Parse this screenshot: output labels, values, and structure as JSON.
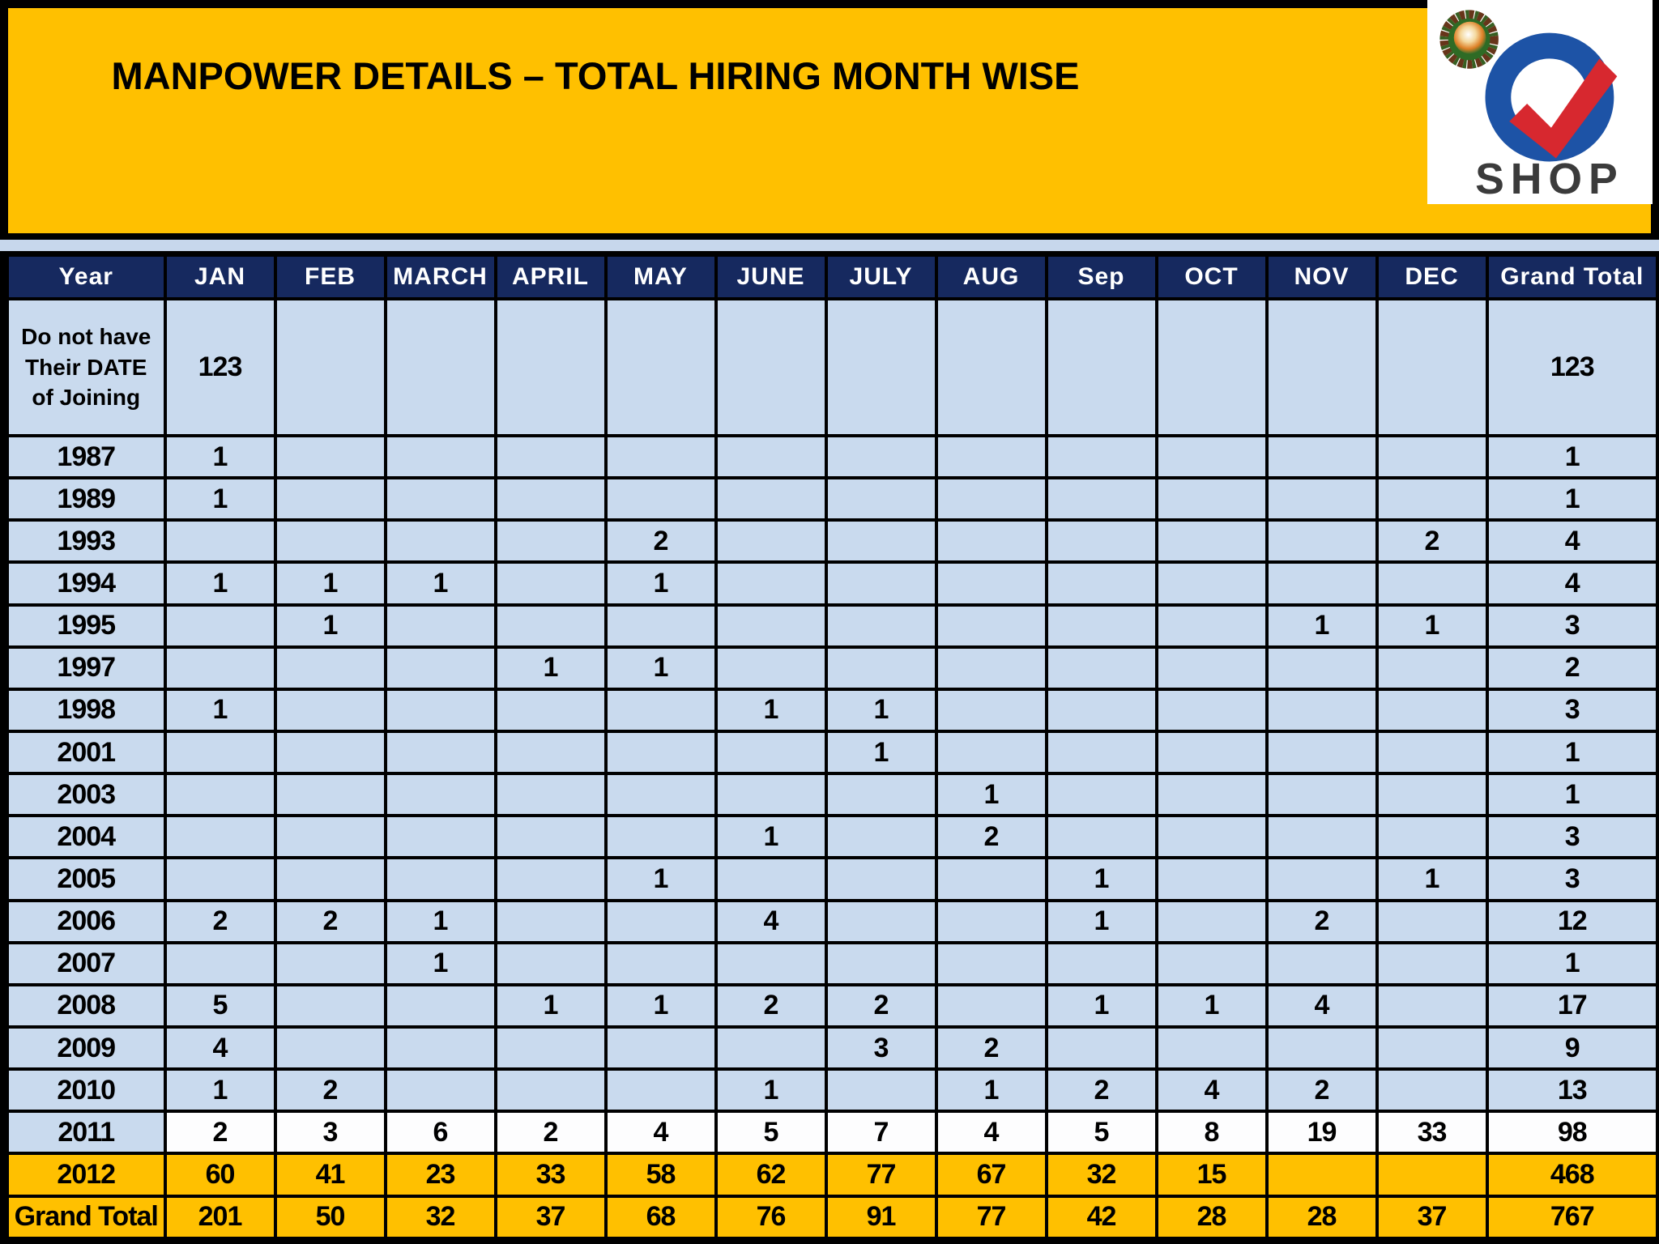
{
  "title": "MANPOWER DETAILS – TOTAL HIRING MONTH WISE",
  "logo": {
    "brand": "Q SHOP",
    "text": "SHOP"
  },
  "colors": {
    "banner": "#FFC000",
    "header_bg": "#16295F",
    "header_text": "#FFFFFF",
    "row_bg": "#C9DAEE",
    "highlight_row_bg": "#FFFFFF",
    "total_row_bg": "#FFC000",
    "border": "#000000",
    "page_band": "#C7D7EC",
    "logo_q": "#1D53A6",
    "logo_check": "#D7282F"
  },
  "table": {
    "columns": [
      "Year",
      "JAN",
      "FEB",
      "MARCH",
      "APRIL",
      "MAY",
      "JUNE",
      "JULY",
      "AUG",
      "Sep",
      "OCT",
      "NOV",
      "DEC",
      "Grand Total"
    ],
    "column_keys": [
      "year",
      "jan",
      "feb",
      "march",
      "april",
      "may",
      "june",
      "july",
      "aug",
      "sep",
      "oct",
      "nov",
      "dec",
      "grand-total"
    ],
    "rows": [
      {
        "label": "Do not have Their DATE of Joining",
        "months": [
          "123",
          "",
          "",
          "",
          "",
          "",
          "",
          "",
          "",
          "",
          "",
          ""
        ],
        "total": "123",
        "variant": "blue",
        "tall": true
      },
      {
        "label": "1987",
        "months": [
          "1",
          "",
          "",
          "",
          "",
          "",
          "",
          "",
          "",
          "",
          "",
          ""
        ],
        "total": "1",
        "variant": "blue"
      },
      {
        "label": "1989",
        "months": [
          "1",
          "",
          "",
          "",
          "",
          "",
          "",
          "",
          "",
          "",
          "",
          ""
        ],
        "total": "1",
        "variant": "blue"
      },
      {
        "label": "1993",
        "months": [
          "",
          "",
          "",
          "",
          "2",
          "",
          "",
          "",
          "",
          "",
          "",
          "2"
        ],
        "total": "4",
        "variant": "blue"
      },
      {
        "label": "1994",
        "months": [
          "1",
          "1",
          "1",
          "",
          "1",
          "",
          "",
          "",
          "",
          "",
          "",
          ""
        ],
        "total": "4",
        "variant": "blue"
      },
      {
        "label": "1995",
        "months": [
          "",
          "1",
          "",
          "",
          "",
          "",
          "",
          "",
          "",
          "",
          "1",
          "1"
        ],
        "total": "3",
        "variant": "blue"
      },
      {
        "label": "1997",
        "months": [
          "",
          "",
          "",
          "1",
          "1",
          "",
          "",
          "",
          "",
          "",
          "",
          ""
        ],
        "total": "2",
        "variant": "blue"
      },
      {
        "label": "1998",
        "months": [
          "1",
          "",
          "",
          "",
          "",
          "1",
          "1",
          "",
          "",
          "",
          "",
          ""
        ],
        "total": "3",
        "variant": "blue"
      },
      {
        "label": "2001",
        "months": [
          "",
          "",
          "",
          "",
          "",
          "",
          "1",
          "",
          "",
          "",
          "",
          ""
        ],
        "total": "1",
        "variant": "blue"
      },
      {
        "label": "2003",
        "months": [
          "",
          "",
          "",
          "",
          "",
          "",
          "",
          "1",
          "",
          "",
          "",
          ""
        ],
        "total": "1",
        "variant": "blue"
      },
      {
        "label": "2004",
        "months": [
          "",
          "",
          "",
          "",
          "",
          "1",
          "",
          "2",
          "",
          "",
          "",
          ""
        ],
        "total": "3",
        "variant": "blue"
      },
      {
        "label": "2005",
        "months": [
          "",
          "",
          "",
          "",
          "1",
          "",
          "",
          "",
          "1",
          "",
          "",
          "1"
        ],
        "total": "3",
        "variant": "blue"
      },
      {
        "label": "2006",
        "months": [
          "2",
          "2",
          "1",
          "",
          "",
          "4",
          "",
          "",
          "1",
          "",
          "2",
          ""
        ],
        "total": "12",
        "variant": "blue"
      },
      {
        "label": "2007",
        "months": [
          "",
          "",
          "1",
          "",
          "",
          "",
          "",
          "",
          "",
          "",
          "",
          ""
        ],
        "total": "1",
        "variant": "blue"
      },
      {
        "label": "2008",
        "months": [
          "5",
          "",
          "",
          "1",
          "1",
          "2",
          "2",
          "",
          "1",
          "1",
          "4",
          ""
        ],
        "total": "17",
        "variant": "blue"
      },
      {
        "label": "2009",
        "months": [
          "4",
          "",
          "",
          "",
          "",
          "",
          "3",
          "2",
          "",
          "",
          "",
          ""
        ],
        "total": "9",
        "variant": "blue"
      },
      {
        "label": "2010",
        "months": [
          "1",
          "2",
          "",
          "",
          "",
          "1",
          "",
          "1",
          "2",
          "4",
          "2",
          ""
        ],
        "total": "13",
        "variant": "blue"
      },
      {
        "label": "2011",
        "months": [
          "2",
          "3",
          "6",
          "2",
          "4",
          "5",
          "7",
          "4",
          "5",
          "8",
          "19",
          "33"
        ],
        "total": "98",
        "variant": "white"
      },
      {
        "label": "2012",
        "months": [
          "60",
          "41",
          "23",
          "33",
          "58",
          "62",
          "77",
          "67",
          "32",
          "15",
          "",
          ""
        ],
        "total": "468",
        "variant": "total"
      },
      {
        "label": "Grand Total",
        "months": [
          "201",
          "50",
          "32",
          "37",
          "68",
          "76",
          "91",
          "77",
          "42",
          "28",
          "28",
          "37"
        ],
        "total": "767",
        "variant": "total"
      }
    ]
  }
}
